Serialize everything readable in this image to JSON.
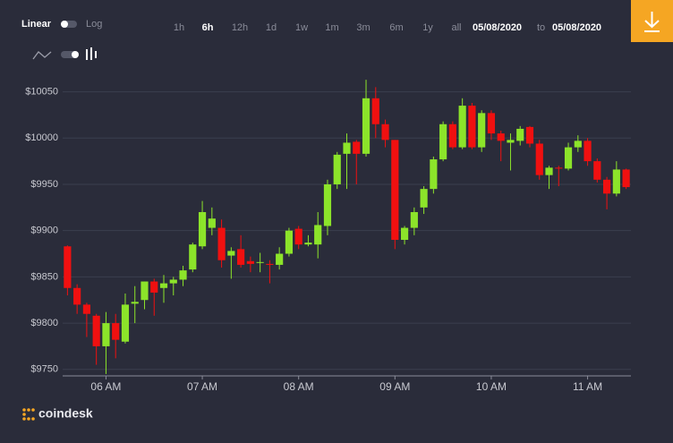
{
  "ui": {
    "scale_options": [
      "Linear",
      "Log"
    ],
    "ranges": [
      "1h",
      "6h",
      "12h",
      "1d",
      "1w",
      "1m",
      "3m",
      "6m",
      "1y",
      "all"
    ],
    "active_range": 1,
    "date_from": "05/08/2020",
    "date_sep": "to",
    "date_to": "05/08/2020",
    "brand": "coindesk"
  },
  "chart_data": {
    "type": "candlestick",
    "categories": [
      null,
      null,
      null,
      null,
      "06 AM",
      null,
      null,
      null,
      null,
      null,
      null,
      null,
      null,
      null,
      "07 AM",
      null,
      null,
      null,
      null,
      null,
      null,
      null,
      null,
      null,
      "08 AM",
      null,
      null,
      null,
      null,
      null,
      null,
      null,
      null,
      null,
      "09 AM",
      null,
      null,
      null,
      null,
      null,
      null,
      null,
      null,
      null,
      "10 AM",
      null,
      null,
      null,
      null,
      null,
      null,
      null,
      null,
      null,
      "11 AM",
      null,
      null,
      null,
      null
    ],
    "open": [
      9883,
      9838,
      9820,
      9808,
      9775,
      9800,
      9780,
      9821,
      9825,
      9845,
      9838,
      9843,
      9847,
      9858,
      9883,
      9903,
      9903,
      9873,
      9880,
      9867,
      9866,
      9864,
      9863,
      9875,
      9902,
      9885,
      9885,
      9905,
      9950,
      9983,
      9996,
      9983,
      10043,
      10015,
      9998,
      9890,
      9903,
      9925,
      9945,
      9977,
      10015,
      9990,
      10035,
      9990,
      10027,
      10005,
      9995,
      9997,
      10012,
      9994,
      9960,
      9968,
      9967,
      9990,
      9997,
      9975,
      9955,
      9940,
      9966
    ],
    "high": [
      9884,
      9842,
      9822,
      9810,
      9812,
      9810,
      9832,
      9840,
      9845,
      9848,
      9852,
      9850,
      9862,
      9887,
      9932,
      9925,
      9912,
      9882,
      9895,
      9872,
      9876,
      9868,
      9882,
      9903,
      9905,
      9895,
      9920,
      9955,
      9985,
      10005,
      9998,
      10063,
      10055,
      10020,
      9998,
      9905,
      9925,
      9948,
      9980,
      10018,
      10018,
      10043,
      10038,
      10030,
      10030,
      10008,
      10005,
      10013,
      10013,
      9998,
      9970,
      9970,
      9995,
      10003,
      10000,
      9978,
      9958,
      9975,
      9967
    ],
    "low": [
      9830,
      9810,
      9785,
      9755,
      9745,
      9762,
      9778,
      9800,
      9815,
      9808,
      9822,
      9830,
      9840,
      9855,
      9880,
      9895,
      9860,
      9848,
      9860,
      9855,
      9855,
      9843,
      9858,
      9872,
      9880,
      9883,
      9870,
      9895,
      9945,
      9945,
      9950,
      9980,
      10000,
      9990,
      9880,
      9885,
      9895,
      9918,
      9940,
      9975,
      9988,
      9988,
      9988,
      9985,
      9998,
      9975,
      9965,
      9992,
      9990,
      9955,
      9945,
      9948,
      9965,
      9985,
      9970,
      9952,
      9923,
      9937,
      9945
    ],
    "close": [
      9838,
      9820,
      9810,
      9775,
      9800,
      9782,
      9820,
      9823,
      9845,
      9833,
      9843,
      9847,
      9857,
      9885,
      9920,
      9913,
      9868,
      9878,
      9863,
      9864,
      9866,
      9863,
      9875,
      9900,
      9885,
      9887,
      9906,
      9950,
      9982,
      9995,
      9983,
      10043,
      10015,
      9998,
      9890,
      9903,
      9920,
      9945,
      9977,
      10015,
      9990,
      10035,
      9990,
      10027,
      10005,
      9997,
      9998,
      10010,
      9994,
      9960,
      9968,
      9967,
      9990,
      9997,
      9975,
      9955,
      9940,
      9966,
      9947
    ],
    "up_color": "#8ce42a",
    "down_color": "#f01010",
    "ylim": [
      9743,
      10067
    ],
    "yticks": [
      {
        "value": 9750,
        "label": "$9750"
      },
      {
        "value": 9800,
        "label": "$9800"
      },
      {
        "value": 9850,
        "label": "$9850"
      },
      {
        "value": 9900,
        "label": "$9900"
      },
      {
        "value": 9950,
        "label": "$9950"
      },
      {
        "value": 10000,
        "label": "$10000"
      },
      {
        "value": 10050,
        "label": "$10050"
      }
    ],
    "grid": true
  }
}
